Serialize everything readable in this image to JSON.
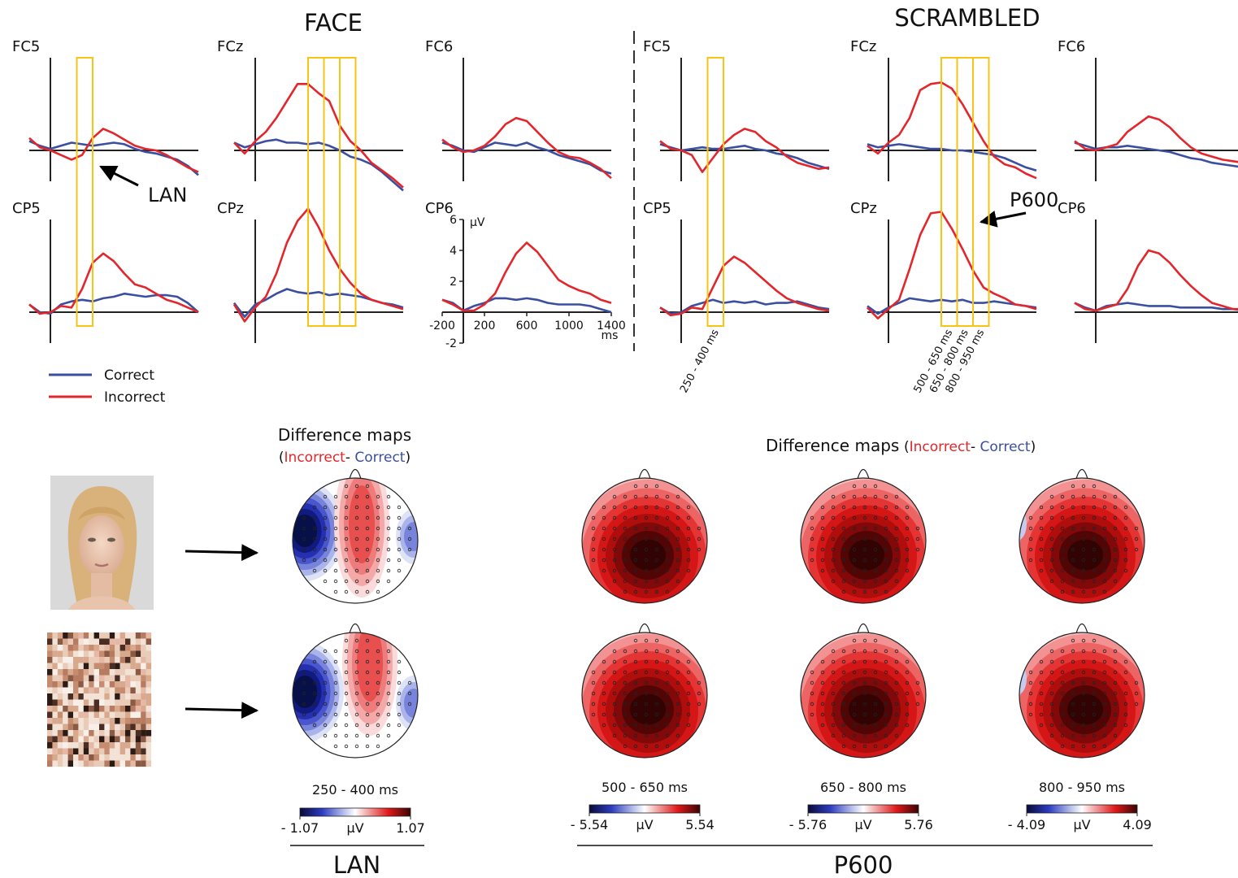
{
  "groups": [
    {
      "title": "FACE"
    },
    {
      "title": "SCRAMBLED"
    }
  ],
  "windows": [
    {
      "start": 250,
      "end": 400,
      "label": "250 - 400 ms"
    },
    {
      "start": 500,
      "end": 650,
      "label": "500 - 650 ms"
    },
    {
      "start": 650,
      "end": 800,
      "label": "650 - 800 ms"
    },
    {
      "start": 800,
      "end": 950,
      "label": "800 - 950 ms"
    }
  ],
  "annotations": [
    "LAN",
    "P600"
  ],
  "chart_data": [
    {
      "type": "line",
      "title": "FC5",
      "x": [
        -200,
        -100,
        0,
        100,
        200,
        300,
        400,
        500,
        600,
        700,
        800,
        900,
        1000,
        1100,
        1200,
        1300,
        1400
      ],
      "xlim": [
        -200,
        1400
      ],
      "ylim": [
        -2,
        6
      ],
      "series": [
        {
          "name": "Correct",
          "color": "#3a4fa0",
          "values": [
            0.6,
            0.3,
            0.1,
            0.3,
            0.5,
            0.4,
            0.3,
            0.4,
            0.5,
            0.4,
            0.1,
            -0.1,
            -0.2,
            -0.4,
            -0.6,
            -1,
            -1.6
          ]
        },
        {
          "name": "Incorrect",
          "color": "#e3262b",
          "values": [
            0.8,
            0.2,
            0,
            -0.3,
            -0.6,
            -0.3,
            0.8,
            1.4,
            1.1,
            0.7,
            0.3,
            0.1,
            0,
            -0.3,
            -0.7,
            -1.1,
            -1.4
          ]
        }
      ]
    },
    {
      "type": "line",
      "title": "FCz",
      "x": [
        -200,
        -100,
        0,
        100,
        200,
        300,
        400,
        500,
        600,
        700,
        800,
        900,
        1000,
        1100,
        1200,
        1300,
        1400
      ],
      "xlim": [
        -200,
        1400
      ],
      "ylim": [
        -2,
        6
      ],
      "series": [
        {
          "name": "Correct",
          "color": "#3a4fa0",
          "values": [
            0.5,
            0.2,
            0.4,
            0.6,
            0.7,
            0.5,
            0.5,
            0.4,
            0.5,
            0.3,
            0,
            -0.4,
            -0.6,
            -0.9,
            -1.4,
            -2,
            -2.6
          ]
        },
        {
          "name": "Incorrect",
          "color": "#e3262b",
          "values": [
            0.5,
            -0.2,
            0.6,
            1.2,
            2.1,
            3.2,
            4.3,
            4.3,
            3.7,
            3.2,
            1.6,
            0.6,
            0,
            -0.8,
            -1.3,
            -1.8,
            -2.4
          ]
        }
      ]
    },
    {
      "type": "line",
      "title": "FC6",
      "x": [
        -200,
        -100,
        0,
        100,
        200,
        300,
        400,
        500,
        600,
        700,
        800,
        900,
        1000,
        1100,
        1200,
        1300,
        1400
      ],
      "xlim": [
        -200,
        1400
      ],
      "ylim": [
        -2,
        6
      ],
      "series": [
        {
          "name": "Correct",
          "color": "#3a4fa0",
          "values": [
            0.5,
            0.3,
            0,
            -0.1,
            0.2,
            0.5,
            0.4,
            0.3,
            0.5,
            0.2,
            0,
            -0.3,
            -0.5,
            -0.7,
            -0.9,
            -1.3,
            -1.5
          ]
        },
        {
          "name": "Incorrect",
          "color": "#e3262b",
          "values": [
            0.7,
            0.2,
            -0.1,
            0,
            0.3,
            0.9,
            1.7,
            2.1,
            1.9,
            1.2,
            0.5,
            -0.1,
            -0.4,
            -0.5,
            -0.8,
            -1.2,
            -1.8
          ]
        }
      ]
    },
    {
      "type": "line",
      "title": "CP5",
      "x": [
        -200,
        -100,
        0,
        100,
        200,
        300,
        400,
        500,
        600,
        700,
        800,
        900,
        1000,
        1100,
        1200,
        1300,
        1400
      ],
      "xlim": [
        -200,
        1400
      ],
      "ylim": [
        -2,
        6
      ],
      "series": [
        {
          "name": "Correct",
          "color": "#3a4fa0",
          "values": [
            0.5,
            0,
            -0.1,
            0.5,
            0.7,
            0.8,
            0.7,
            0.9,
            1,
            1.2,
            1.1,
            1,
            1.1,
            1.1,
            1,
            0.6,
            0
          ]
        },
        {
          "name": "Incorrect",
          "color": "#e3262b",
          "values": [
            0.5,
            -0.1,
            0,
            0.4,
            0.3,
            1.5,
            3.2,
            3.8,
            3.3,
            2.5,
            1.8,
            1.6,
            1.2,
            0.8,
            0.6,
            0.3,
            0
          ]
        }
      ]
    },
    {
      "type": "line",
      "title": "CPz",
      "x": [
        -200,
        -100,
        0,
        100,
        200,
        300,
        400,
        500,
        600,
        700,
        800,
        900,
        1000,
        1100,
        1200,
        1300,
        1400
      ],
      "xlim": [
        -200,
        1400
      ],
      "ylim": [
        -2,
        6
      ],
      "series": [
        {
          "name": "Correct",
          "color": "#3a4fa0",
          "values": [
            0.6,
            -0.3,
            0.5,
            0.8,
            1.2,
            1.5,
            1.3,
            1.2,
            1.3,
            1.1,
            1.2,
            1.1,
            1,
            0.8,
            0.6,
            0.5,
            0.3
          ]
        },
        {
          "name": "Incorrect",
          "color": "#e3262b",
          "values": [
            0.5,
            -0.6,
            0.3,
            1,
            2.5,
            4.5,
            5.9,
            6.7,
            5.5,
            4,
            2.8,
            1.9,
            1.2,
            0.8,
            0.6,
            0.4,
            0.2
          ]
        }
      ]
    },
    {
      "type": "line",
      "title": "CP6",
      "x": [
        -200,
        -100,
        0,
        100,
        200,
        300,
        400,
        500,
        600,
        700,
        800,
        900,
        1000,
        1100,
        1200,
        1300,
        1400
      ],
      "xlim": [
        -200,
        1400
      ],
      "ylim": [
        -2,
        6
      ],
      "xticks": [
        -200,
        200,
        600,
        1000,
        1400
      ],
      "yticks": [
        -2,
        2,
        4,
        6
      ],
      "xlabel": "ms",
      "ylabel": "µV",
      "series": [
        {
          "name": "Correct",
          "color": "#3a4fa0",
          "values": [
            0.8,
            0.6,
            0.1,
            0.4,
            0.6,
            0.9,
            0.9,
            0.8,
            0.9,
            0.8,
            0.6,
            0.5,
            0.5,
            0.5,
            0.4,
            0.2,
            0
          ]
        },
        {
          "name": "Incorrect",
          "color": "#e3262b",
          "values": [
            0.8,
            0.5,
            0.1,
            0.1,
            0.5,
            1.2,
            2.6,
            3.8,
            4.5,
            3.9,
            3,
            2.1,
            1.7,
            1.4,
            1.2,
            0.8,
            0.6
          ]
        }
      ]
    },
    {
      "type": "line",
      "title": "FC5",
      "x": [
        -200,
        -100,
        0,
        100,
        200,
        300,
        400,
        500,
        600,
        700,
        800,
        900,
        1000,
        1100,
        1200,
        1300,
        1400
      ],
      "xlim": [
        -200,
        1400
      ],
      "ylim": [
        -2,
        6
      ],
      "series": [
        {
          "name": "Correct",
          "color": "#3a4fa0",
          "values": [
            0.4,
            0.2,
            0,
            0.1,
            0.2,
            0.1,
            0.1,
            0.2,
            0.3,
            0.1,
            0,
            -0.2,
            -0.3,
            -0.5,
            -0.8,
            -1,
            -1.2
          ]
        },
        {
          "name": "Incorrect",
          "color": "#e3262b",
          "values": [
            0.6,
            0.1,
            0,
            -0.3,
            -1.4,
            -0.5,
            0.4,
            1,
            1.4,
            1.2,
            0.6,
            0.2,
            -0.4,
            -0.8,
            -1,
            -1.2,
            -1.1
          ]
        }
      ]
    },
    {
      "type": "line",
      "title": "FCz",
      "x": [
        -200,
        -100,
        0,
        100,
        200,
        300,
        400,
        500,
        600,
        700,
        800,
        900,
        1000,
        1100,
        1200,
        1300,
        1400
      ],
      "xlim": [
        -200,
        1400
      ],
      "ylim": [
        -2,
        6
      ],
      "series": [
        {
          "name": "Correct",
          "color": "#3a4fa0",
          "values": [
            0.4,
            0.2,
            0.3,
            0.4,
            0.3,
            0.2,
            0.1,
            0.1,
            0,
            0,
            -0.1,
            -0.2,
            -0.3,
            -0.5,
            -0.8,
            -1.1,
            -1.3
          ]
        },
        {
          "name": "Incorrect",
          "color": "#e3262b",
          "values": [
            0.3,
            -0.2,
            0.5,
            1,
            2.1,
            3.9,
            4.3,
            4.4,
            4,
            3,
            1.8,
            0.6,
            -0.4,
            -0.9,
            -1.1,
            -1.5,
            -1.8
          ]
        }
      ]
    },
    {
      "type": "line",
      "title": "FC6",
      "x": [
        -200,
        -100,
        0,
        100,
        200,
        300,
        400,
        500,
        600,
        700,
        800,
        900,
        1000,
        1100,
        1200,
        1300,
        1400
      ],
      "xlim": [
        -200,
        1400
      ],
      "ylim": [
        -2,
        6
      ],
      "series": [
        {
          "name": "Correct",
          "color": "#3a4fa0",
          "values": [
            0.5,
            0.3,
            0.1,
            0.2,
            0.2,
            0.3,
            0.2,
            0.1,
            0,
            -0.1,
            -0.3,
            -0.5,
            -0.6,
            -0.8,
            -0.9,
            -1,
            -1.1
          ]
        },
        {
          "name": "Incorrect",
          "color": "#e3262b",
          "values": [
            0.6,
            0.1,
            0,
            0.2,
            0.4,
            1.2,
            1.7,
            2.2,
            2,
            1.5,
            0.8,
            0.2,
            -0.2,
            -0.4,
            -0.6,
            -0.7,
            -0.8
          ]
        }
      ]
    },
    {
      "type": "line",
      "title": "CP5",
      "x": [
        -200,
        -100,
        0,
        100,
        200,
        300,
        400,
        500,
        600,
        700,
        800,
        900,
        1000,
        1100,
        1200,
        1300,
        1400
      ],
      "xlim": [
        -200,
        1400
      ],
      "ylim": [
        -2,
        6
      ],
      "series": [
        {
          "name": "Correct",
          "color": "#3a4fa0",
          "values": [
            0.3,
            -0.1,
            0,
            0.4,
            0.6,
            0.8,
            0.6,
            0.7,
            0.6,
            0.7,
            0.5,
            0.6,
            0.6,
            0.7,
            0.5,
            0.3,
            0.2
          ]
        },
        {
          "name": "Incorrect",
          "color": "#e3262b",
          "values": [
            0.3,
            -0.2,
            -0.1,
            0.3,
            0.2,
            1.6,
            3,
            3.6,
            3.2,
            2.6,
            2,
            1.4,
            0.9,
            0.6,
            0.4,
            0.2,
            0.1
          ]
        }
      ]
    },
    {
      "type": "line",
      "title": "CPz",
      "x": [
        -200,
        -100,
        0,
        100,
        200,
        300,
        400,
        500,
        600,
        700,
        800,
        900,
        1000,
        1100,
        1200,
        1300,
        1400
      ],
      "xlim": [
        -200,
        1400
      ],
      "ylim": [
        -2,
        6
      ],
      "series": [
        {
          "name": "Correct",
          "color": "#3a4fa0",
          "values": [
            0.4,
            -0.1,
            0.3,
            0.6,
            0.9,
            0.8,
            0.7,
            0.8,
            0.7,
            0.8,
            0.6,
            0.6,
            0.7,
            0.6,
            0.5,
            0.4,
            0.3
          ]
        },
        {
          "name": "Incorrect",
          "color": "#e3262b",
          "values": [
            0.3,
            -0.4,
            0.2,
            0.8,
            2.8,
            5,
            6.4,
            6.5,
            5.4,
            4.1,
            2.7,
            1.6,
            1.2,
            0.9,
            0.5,
            0.4,
            0.2
          ]
        }
      ]
    },
    {
      "type": "line",
      "title": "CP6",
      "x": [
        -200,
        -100,
        0,
        100,
        200,
        300,
        400,
        500,
        600,
        700,
        800,
        900,
        1000,
        1100,
        1200,
        1300,
        1400
      ],
      "xlim": [
        -200,
        1400
      ],
      "ylim": [
        -2,
        6
      ],
      "series": [
        {
          "name": "Correct",
          "color": "#3a4fa0",
          "values": [
            0.6,
            0.3,
            0.1,
            0.4,
            0.5,
            0.6,
            0.5,
            0.4,
            0.4,
            0.4,
            0.3,
            0.3,
            0.3,
            0.3,
            0.2,
            0.2,
            0.1
          ]
        },
        {
          "name": "Incorrect",
          "color": "#e3262b",
          "values": [
            0.6,
            0.2,
            0.1,
            0.3,
            0.5,
            1.5,
            3,
            4,
            3.8,
            3.2,
            2.4,
            1.7,
            1.1,
            0.6,
            0.4,
            0.2,
            0.2
          ]
        }
      ]
    }
  ],
  "map_groups": [
    {
      "title": "Difference maps",
      "subtitle": [
        "(",
        "Incorrect",
        "- ",
        "Correct",
        ")"
      ],
      "label": "LAN",
      "maps": [
        {
          "time": "250 - 400 ms",
          "unit": "µV",
          "colorbar": [
            {
              "value": -1.07,
              "label": "- 1.07"
            },
            1.07
          ]
        }
      ]
    },
    {
      "title": "Difference maps",
      "subtitle": [
        "(",
        "Incorrect",
        "- ",
        "Correct",
        ")"
      ],
      "label": "P600",
      "maps": [
        {
          "time": "500 - 650 ms",
          "unit": "µV",
          "colorbar": [
            {
              "value": -5.54,
              "label": "- 5.54"
            },
            5.54
          ]
        },
        {
          "time": "650 - 800 ms",
          "unit": "µV",
          "colorbar": [
            {
              "value": -5.76,
              "label": "- 5.76"
            },
            5.76
          ]
        },
        {
          "time": "800 - 950 ms",
          "unit": "µV",
          "colorbar": [
            {
              "value": -4.09,
              "label": "- 4.09"
            },
            4.09
          ]
        }
      ]
    }
  ]
}
